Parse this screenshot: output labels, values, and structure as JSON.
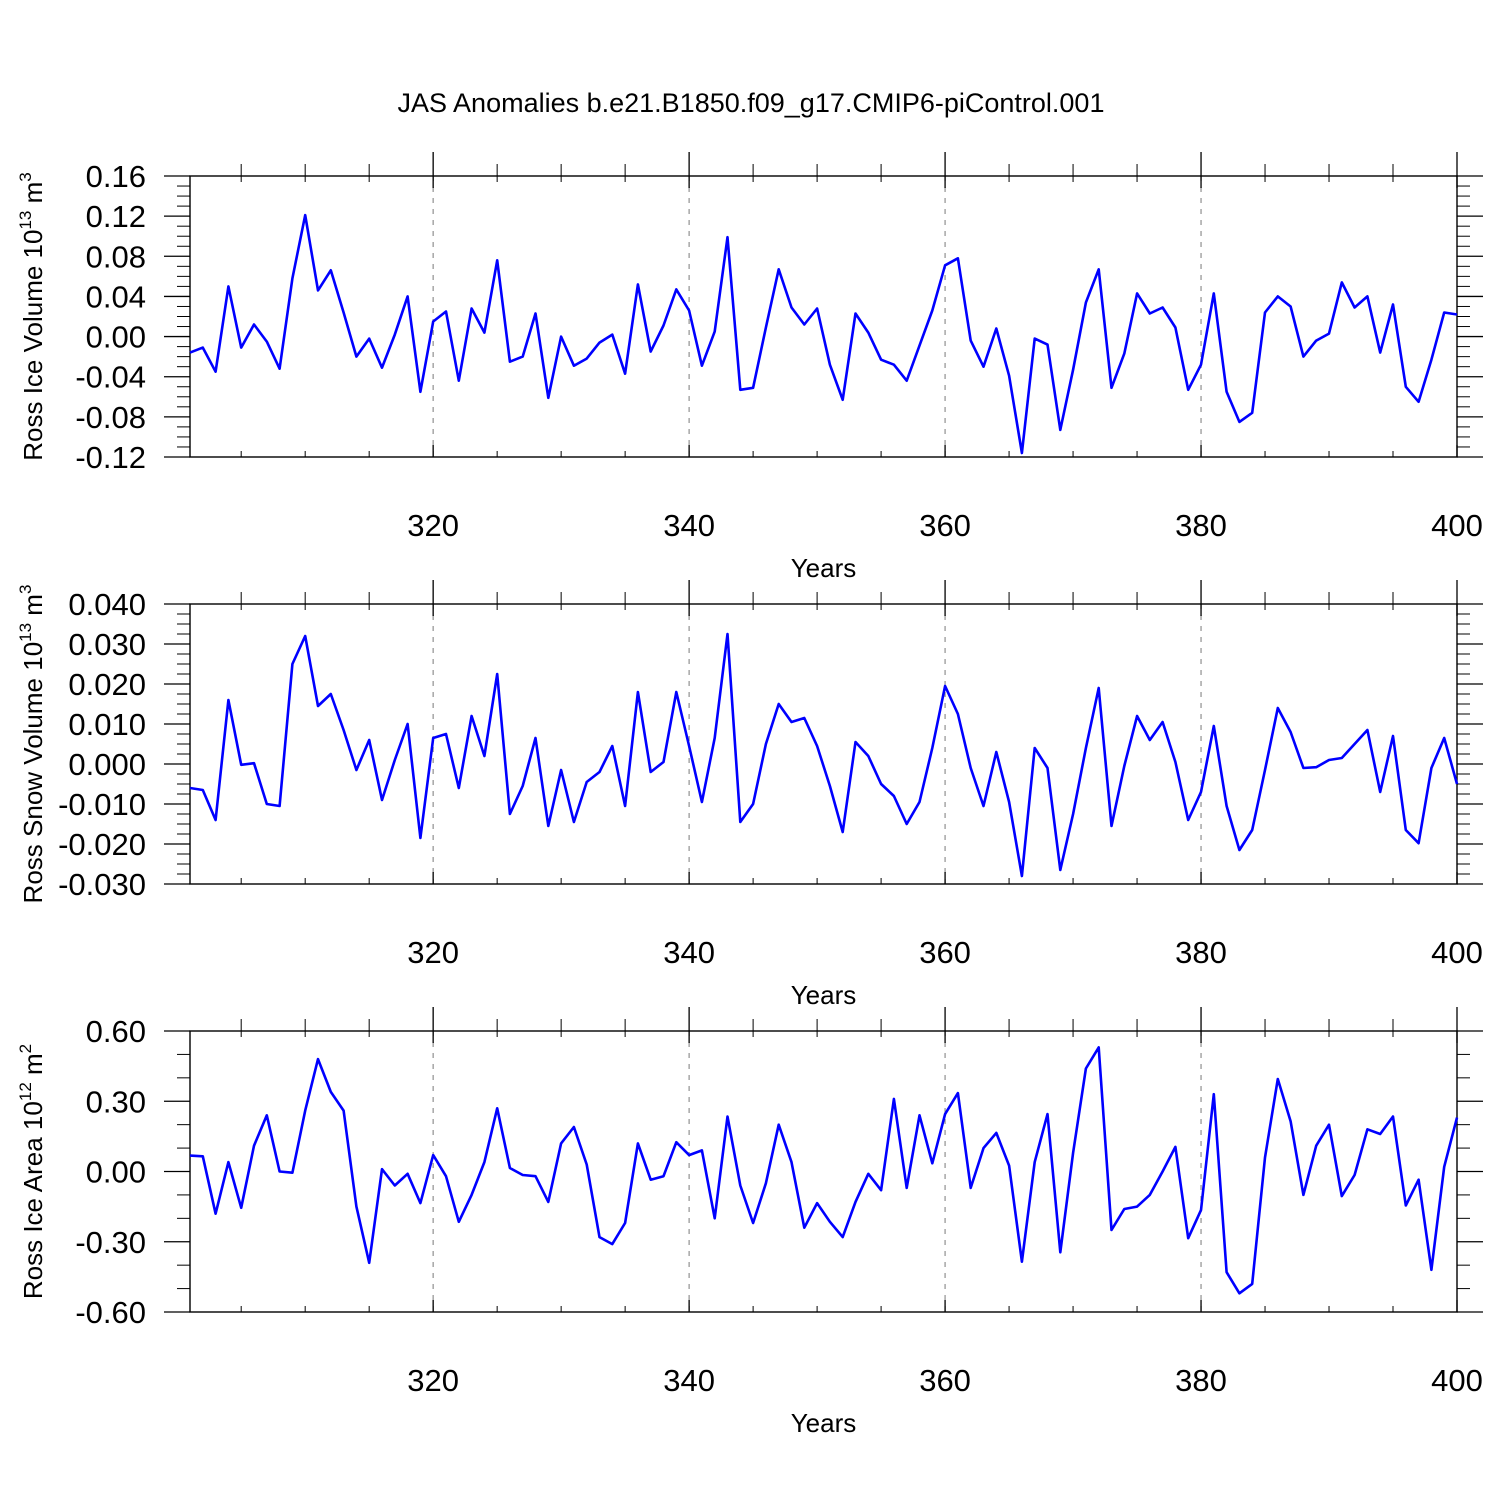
{
  "title": "JAS Anomalies b.e21.B1850.f09_g17.CMIP6-piControl.001",
  "colors": {
    "line": "#0000ff",
    "axis": "#000000",
    "grid": "#999999"
  },
  "chart_data": [
    {
      "type": "line",
      "ylabel": {
        "prefix": "Ross Ice Volume 10",
        "exp": "13",
        "unit": " m",
        "unit_exp": "3"
      },
      "xlabel": "Years",
      "xlim": [
        301,
        400
      ],
      "ylim": [
        -0.12,
        0.16
      ],
      "yticks": [
        "-0.12",
        "-0.08",
        "-0.04",
        "0.00",
        "0.04",
        "0.08",
        "0.12",
        "0.16"
      ],
      "xticks": [
        "320",
        "340",
        "360",
        "380",
        "400"
      ],
      "grid": "dashed vertical at x ticks",
      "series": [
        {
          "values": [
            -0.016,
            -0.011,
            -0.035,
            0.05,
            -0.011,
            0.012,
            -0.005,
            -0.032,
            0.058,
            0.121,
            0.046,
            0.066,
            0.024,
            -0.02,
            -0.002,
            -0.031,
            0.002,
            0.04,
            -0.055,
            0.015,
            0.025,
            -0.044,
            0.028,
            0.004,
            0.076,
            -0.025,
            -0.02,
            0.023,
            -0.061,
            0.0,
            -0.029,
            -0.022,
            -0.006,
            0.002,
            -0.037,
            0.052,
            -0.015,
            0.011,
            0.047,
            0.026,
            -0.029,
            0.005,
            0.099,
            -0.053,
            -0.051,
            0.009,
            0.067,
            0.029,
            0.012,
            0.028,
            -0.028,
            -0.063,
            0.023,
            0.004,
            -0.023,
            -0.028,
            -0.044,
            -0.009,
            0.026,
            0.071,
            0.078,
            -0.004,
            -0.03,
            0.008,
            -0.039,
            -0.116,
            -0.002,
            -0.008,
            -0.093,
            -0.033,
            0.034,
            0.067,
            -0.051,
            -0.017,
            0.043,
            0.023,
            0.029,
            0.009,
            -0.053,
            -0.028,
            0.043,
            -0.055,
            -0.085,
            -0.076,
            0.024,
            0.04,
            0.03,
            -0.02,
            -0.004,
            0.003,
            0.054,
            0.029,
            0.04,
            -0.016,
            0.032,
            -0.05,
            -0.065,
            -0.023,
            0.024,
            0.022
          ]
        }
      ]
    },
    {
      "type": "line",
      "ylabel": {
        "prefix": "Ross Snow Volume 10",
        "exp": "13",
        "unit": " m",
        "unit_exp": "3"
      },
      "xlabel": "Years",
      "xlim": [
        301,
        400
      ],
      "ylim": [
        -0.03,
        0.04
      ],
      "yticks": [
        "-0.030",
        "-0.020",
        "-0.010",
        "0.000",
        "0.010",
        "0.020",
        "0.030",
        "0.040"
      ],
      "xticks": [
        "320",
        "340",
        "360",
        "380",
        "400"
      ],
      "grid": "dashed vertical at x ticks",
      "series": [
        {
          "values": [
            -0.006,
            -0.0065,
            -0.014,
            0.016,
            -0.0002,
            0.0002,
            -0.01,
            -0.0105,
            0.025,
            0.032,
            0.0145,
            0.0175,
            0.0085,
            -0.0015,
            0.006,
            -0.009,
            0.001,
            0.01,
            -0.0185,
            0.0065,
            0.0075,
            -0.006,
            0.012,
            0.002,
            0.0225,
            -0.0125,
            -0.0055,
            0.0065,
            -0.0155,
            -0.0015,
            -0.0145,
            -0.0045,
            -0.002,
            0.0045,
            -0.0105,
            0.018,
            -0.002,
            0.0005,
            0.018,
            0.0045,
            -0.0095,
            0.0065,
            0.0325,
            -0.0145,
            -0.01,
            0.005,
            0.015,
            0.0105,
            0.0115,
            0.0045,
            -0.0055,
            -0.017,
            0.0055,
            0.002,
            -0.005,
            -0.008,
            -0.015,
            -0.0095,
            0.004,
            0.0195,
            0.0125,
            -0.001,
            -0.0105,
            0.003,
            -0.0095,
            -0.028,
            0.004,
            -0.001,
            -0.0265,
            -0.0125,
            0.004,
            0.019,
            -0.0155,
            -0.0005,
            0.012,
            0.006,
            0.0105,
            0.0005,
            -0.014,
            -0.007,
            0.0095,
            -0.0105,
            -0.0215,
            -0.0165,
            -0.0015,
            0.014,
            0.008,
            -0.001,
            -0.0008,
            0.001,
            0.0015,
            0.005,
            0.0085,
            -0.007,
            0.007,
            -0.0165,
            -0.0198,
            -0.001,
            0.0065,
            -0.005
          ]
        }
      ]
    },
    {
      "type": "line",
      "ylabel": {
        "prefix": "Ross Ice Area 10",
        "exp": "12",
        "unit": " m",
        "unit_exp": "2"
      },
      "xlabel": "Years",
      "xlim": [
        301,
        400
      ],
      "ylim": [
        -0.6,
        0.6
      ],
      "yticks": [
        "-0.60",
        "-0.30",
        "0.00",
        "0.30",
        "0.60"
      ],
      "xticks": [
        "320",
        "340",
        "360",
        "380",
        "400"
      ],
      "grid": "dashed vertical at x ticks",
      "series": [
        {
          "values": [
            0.068,
            0.065,
            -0.18,
            0.04,
            -0.155,
            0.11,
            0.24,
            0.0,
            -0.005,
            0.26,
            0.48,
            0.34,
            0.26,
            -0.15,
            -0.39,
            0.01,
            -0.06,
            -0.01,
            -0.135,
            0.07,
            -0.02,
            -0.215,
            -0.1,
            0.04,
            0.27,
            0.015,
            -0.015,
            -0.02,
            -0.13,
            0.12,
            0.19,
            0.03,
            -0.28,
            -0.31,
            -0.22,
            0.12,
            -0.035,
            -0.02,
            0.125,
            0.07,
            0.09,
            -0.2,
            0.235,
            -0.06,
            -0.22,
            -0.05,
            0.2,
            0.04,
            -0.24,
            -0.135,
            -0.215,
            -0.28,
            -0.13,
            -0.01,
            -0.08,
            0.31,
            -0.07,
            0.24,
            0.035,
            0.245,
            0.335,
            -0.07,
            0.1,
            0.165,
            0.025,
            -0.385,
            0.04,
            0.245,
            -0.345,
            0.08,
            0.44,
            0.53,
            -0.25,
            -0.16,
            -0.15,
            -0.1,
            0.0,
            0.105,
            -0.285,
            -0.165,
            0.33,
            -0.43,
            -0.52,
            -0.48,
            0.06,
            0.395,
            0.215,
            -0.1,
            0.11,
            0.2,
            -0.105,
            -0.015,
            0.18,
            0.16,
            0.235,
            -0.145,
            -0.035,
            -0.42,
            0.02,
            0.23
          ]
        }
      ]
    }
  ]
}
